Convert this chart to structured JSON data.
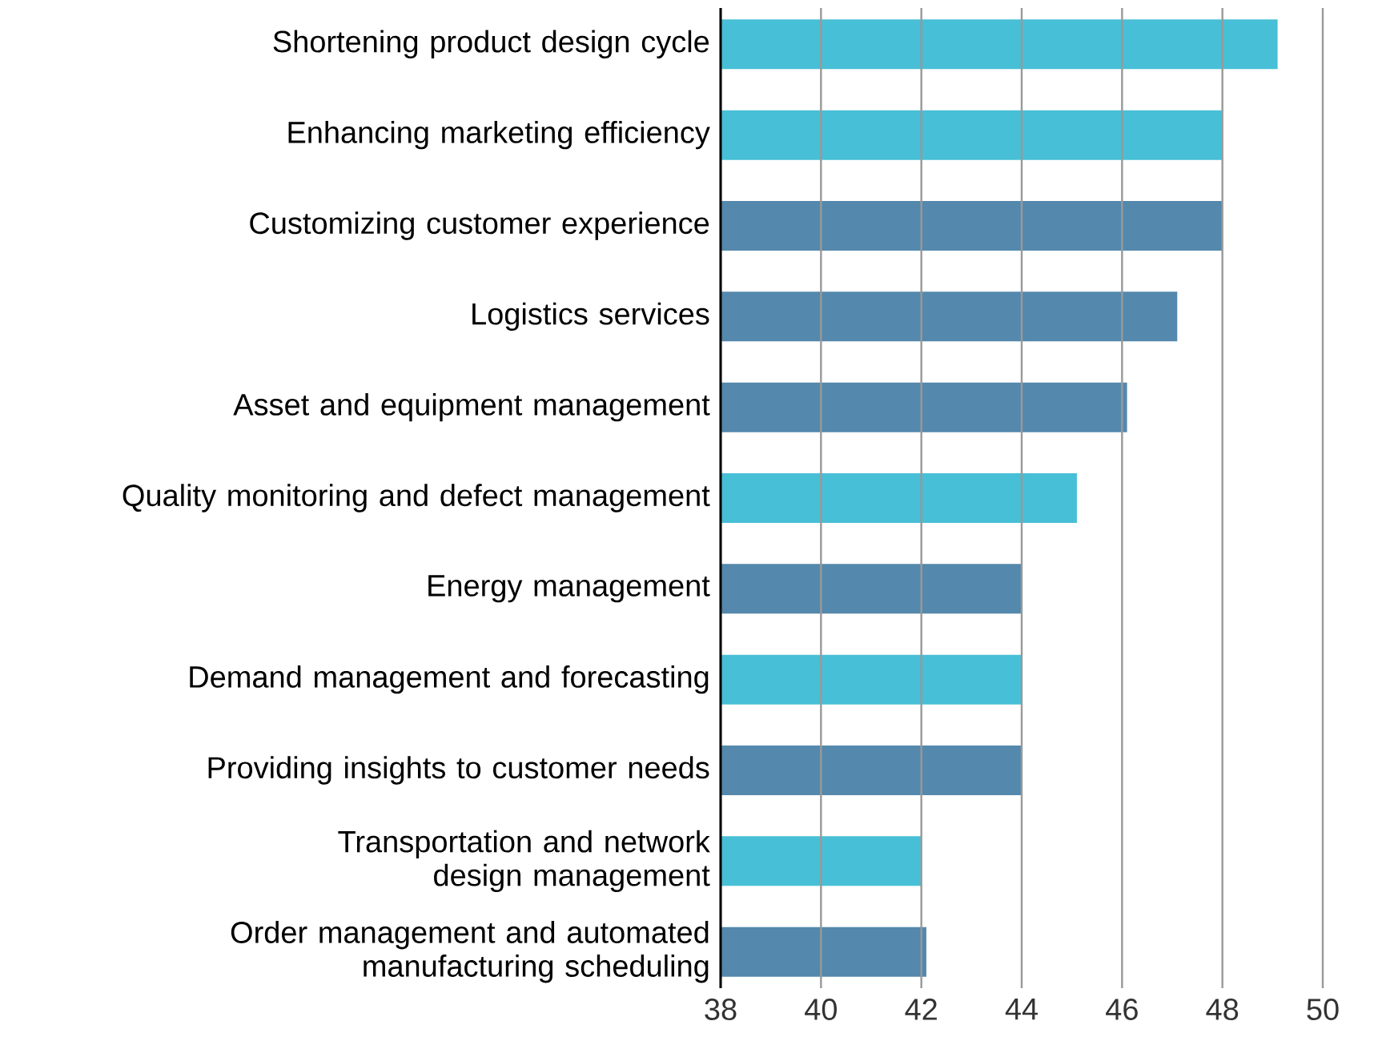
{
  "chart_data": {
    "type": "bar",
    "orientation": "horizontal",
    "categories": [
      "Shortening product design cycle",
      "Enhancing marketing efficiency",
      "Customizing customer experience",
      "Logistics services",
      "Asset and equipment management",
      "Quality monitoring and defect management",
      "Energy management",
      "Demand management and forecasting",
      "Providing insights to customer needs",
      "Transportation and network design management",
      "Order management and automated manufacturing scheduling"
    ],
    "values": [
      49.1,
      48.0,
      48.0,
      47.1,
      46.1,
      45.1,
      44.0,
      44.0,
      44.0,
      42.0,
      42.1
    ],
    "colors": [
      "#47bfd6",
      "#47bfd6",
      "#5488ad",
      "#5488ad",
      "#5488ad",
      "#47bfd6",
      "#5488ad",
      "#47bfd6",
      "#5488ad",
      "#47bfd6",
      "#5488ad"
    ],
    "xlim": [
      38,
      50
    ],
    "xticks": [
      38,
      40,
      42,
      44,
      46,
      48,
      50
    ],
    "grid": "x"
  }
}
